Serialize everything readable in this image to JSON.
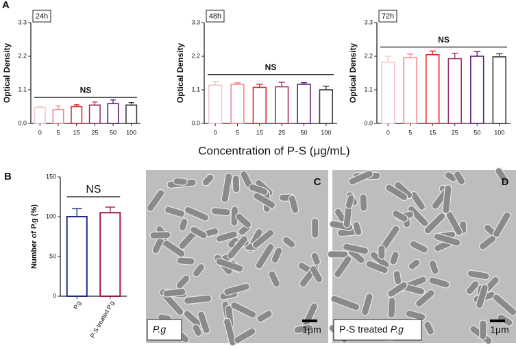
{
  "panel_labels": [
    "A",
    "B"
  ],
  "shared_x_label": "Concentration of P-S (μg/mL)",
  "chart_data": [
    {
      "type": "bar",
      "title": "24h",
      "ylabel": "Optical Density",
      "categories": [
        "0",
        "5",
        "15",
        "25",
        "50",
        "100"
      ],
      "values": [
        0.52,
        0.45,
        0.55,
        0.6,
        0.65,
        0.6
      ],
      "errors": [
        0.03,
        0.12,
        0.06,
        0.1,
        0.12,
        0.08
      ],
      "colors": [
        "#f5c6ca",
        "#ef8a90",
        "#e3232b",
        "#a03068",
        "#5b1f78",
        "#3b3b3b"
      ],
      "ylim": [
        0,
        3.3
      ],
      "yticks": [
        {
          "value": 0,
          "label": "0.0"
        },
        1.1,
        2.2,
        3.3
      ],
      "annotation": {
        "text": "NS",
        "y": 0.85
      }
    },
    {
      "type": "bar",
      "title": "48h",
      "ylabel": "Optical Density",
      "categories": [
        "0",
        "5",
        "15",
        "25",
        "50",
        "100"
      ],
      "values": [
        1.25,
        1.28,
        1.18,
        1.2,
        1.28,
        1.1
      ],
      "errors": [
        0.12,
        0.05,
        0.1,
        0.15,
        0.05,
        0.12
      ],
      "colors": [
        "#f5c6ca",
        "#ef8a90",
        "#e3232b",
        "#a03068",
        "#5b1f78",
        "#3b3b3b"
      ],
      "ylim": [
        0,
        3.3
      ],
      "yticks": [
        {
          "value": 0,
          "label": "0.0"
        },
        1.1,
        2.2,
        3.3
      ],
      "annotation": {
        "text": "NS",
        "y": 1.6
      }
    },
    {
      "type": "bar",
      "title": "72h",
      "ylabel": "Optical Density",
      "categories": [
        "0",
        "5",
        "15",
        "25",
        "50",
        "100"
      ],
      "values": [
        2.0,
        2.15,
        2.25,
        2.12,
        2.2,
        2.18
      ],
      "errors": [
        0.2,
        0.12,
        0.12,
        0.18,
        0.15,
        0.1
      ],
      "colors": [
        "#f5c6ca",
        "#ef8a90",
        "#e3232b",
        "#a03068",
        "#5b1f78",
        "#3b3b3b"
      ],
      "ylim": [
        0,
        3.3
      ],
      "yticks": [
        {
          "value": 0,
          "label": "0.0"
        },
        1.1,
        2.2,
        3.3
      ],
      "annotation": {
        "text": "NS",
        "y": 2.5
      }
    },
    {
      "type": "bar",
      "ylabel": "Number of P.g (%)",
      "categories": [
        "P.g",
        "P-S treated P.g"
      ],
      "values": [
        100,
        105
      ],
      "errors": [
        10,
        7
      ],
      "colors": [
        "#1f2a8a",
        "#a0184a"
      ],
      "ylim": [
        0,
        150
      ],
      "yticks": [
        0,
        50,
        100,
        150
      ],
      "annotation": {
        "text": "NS",
        "y": 125
      }
    }
  ],
  "images": [
    {
      "label": "C",
      "caption": [
        {
          "text": "P.g",
          "italic": true
        }
      ],
      "scale_bar": "1μm"
    },
    {
      "label": "D",
      "caption": [
        {
          "text": "P-S treated ",
          "italic": false
        },
        {
          "text": "P.g",
          "italic": true
        }
      ],
      "scale_bar": "1μm"
    }
  ]
}
